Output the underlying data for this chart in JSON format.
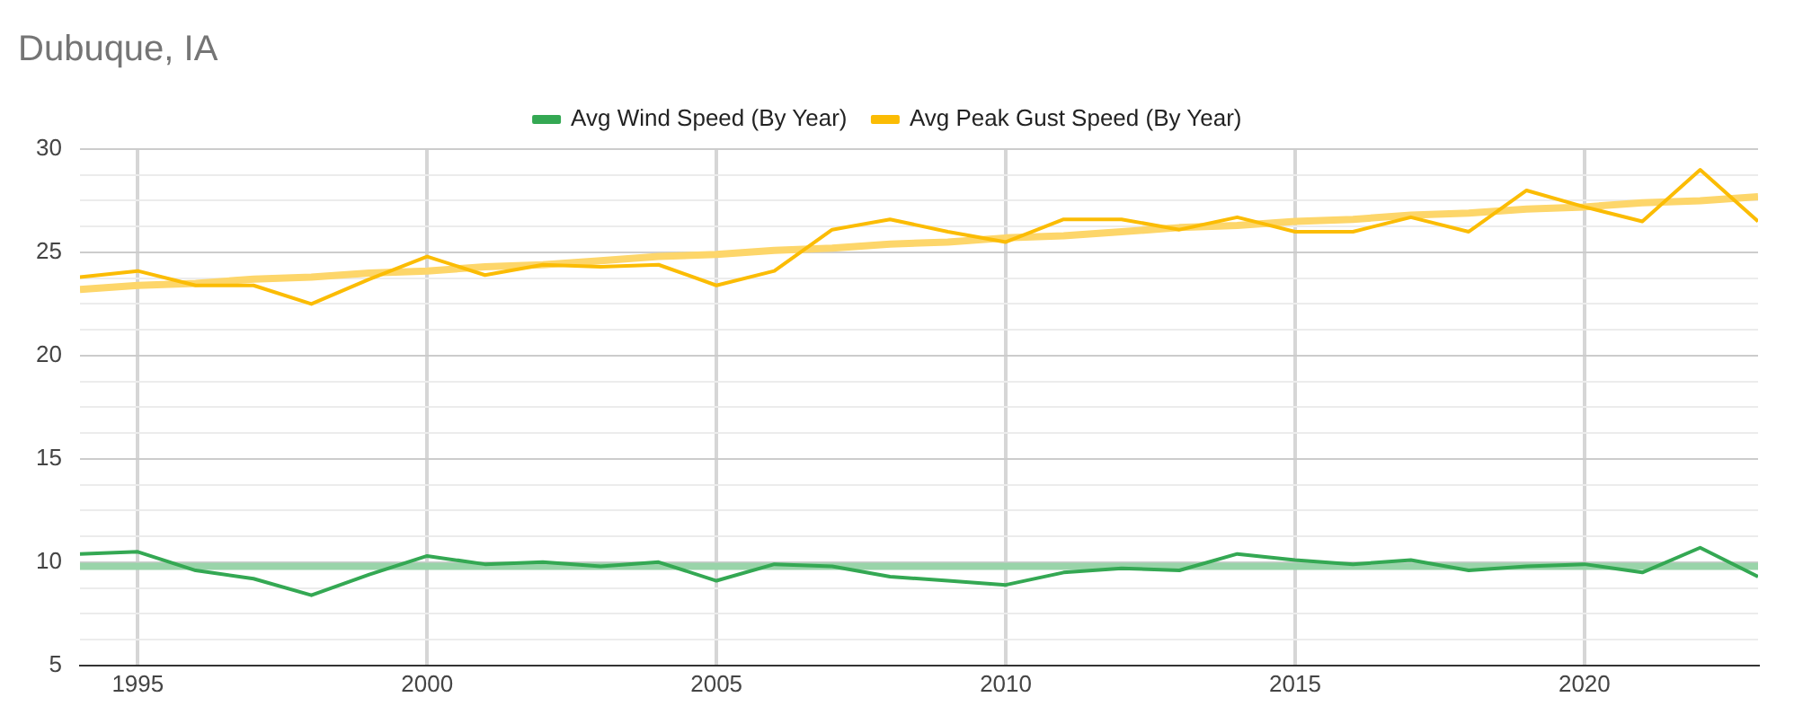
{
  "chart_data": {
    "type": "line",
    "title": "Dubuque, IA",
    "legend": "top",
    "grid": true,
    "marker": "none",
    "line_style": "solid",
    "x": [
      1994,
      1995,
      1996,
      1997,
      1998,
      1999,
      2000,
      2001,
      2002,
      2003,
      2004,
      2005,
      2006,
      2007,
      2008,
      2009,
      2010,
      2011,
      2012,
      2013,
      2014,
      2015,
      2016,
      2017,
      2018,
      2019,
      2020,
      2021,
      2022,
      2023
    ],
    "xlim": [
      1994,
      2023
    ],
    "xticks": [
      1995,
      2000,
      2005,
      2010,
      2015,
      2020
    ],
    "ylim": [
      5,
      30
    ],
    "yticks": [
      5,
      {
        "value": 6.25,
        "label": null
      },
      {
        "value": 7.5,
        "label": null
      },
      {
        "value": 8.75,
        "label": null
      },
      10,
      {
        "value": 11.25,
        "label": null
      },
      {
        "value": 12.5,
        "label": null
      },
      {
        "value": 13.75,
        "label": null
      },
      15,
      {
        "value": 16.25,
        "label": null
      },
      {
        "value": 17.5,
        "label": null
      },
      {
        "value": 18.75,
        "label": null
      },
      20,
      {
        "value": 21.25,
        "label": null
      },
      {
        "value": 22.5,
        "label": null
      },
      {
        "value": 23.75,
        "label": null
      },
      25,
      {
        "value": 26.25,
        "label": null
      },
      {
        "value": 27.5,
        "label": null
      },
      {
        "value": 28.75,
        "label": null
      },
      30
    ],
    "series": [
      {
        "name": "Avg Wind Speed (By Year)",
        "color": "#34a853",
        "values": [
          10.4,
          10.5,
          9.6,
          9.2,
          8.4,
          9.4,
          10.3,
          9.9,
          10.0,
          9.8,
          10.0,
          9.1,
          9.9,
          9.8,
          9.3,
          9.1,
          8.9,
          9.5,
          9.7,
          9.6,
          10.4,
          10.1,
          9.9,
          10.1,
          9.6,
          9.8,
          9.9,
          9.5,
          10.7,
          9.3
        ]
      },
      {
        "name": "Avg Peak Gust Speed (By Year)",
        "color": "#fbbc04",
        "values": [
          23.8,
          24.1,
          23.4,
          23.4,
          22.5,
          23.7,
          24.8,
          23.9,
          24.4,
          24.3,
          24.4,
          23.4,
          24.1,
          26.1,
          26.6,
          26.0,
          25.5,
          26.6,
          26.6,
          26.1,
          26.7,
          26.0,
          26.0,
          26.7,
          26.0,
          28.0,
          27.2,
          26.5,
          29.0,
          26.5
        ]
      },
      {
        "type": "line",
        "color": "#99d4a9",
        "values": [
          9.8,
          9.8,
          9.8,
          9.8,
          9.8,
          9.8,
          9.8,
          9.8,
          9.8,
          9.8,
          9.8,
          9.8,
          9.8,
          9.8,
          9.8,
          9.8,
          9.8,
          9.8,
          9.8,
          9.8,
          9.8,
          9.8,
          9.8,
          9.8,
          9.8,
          9.8,
          9.8,
          9.8,
          9.8,
          9.8
        ]
      },
      {
        "type": "line",
        "color": "#fdd66a",
        "values": [
          23.2,
          23.4,
          23.5,
          23.7,
          23.8,
          24.0,
          24.1,
          24.3,
          24.4,
          24.6,
          24.8,
          24.9,
          25.1,
          25.2,
          25.4,
          25.5,
          25.7,
          25.8,
          26.0,
          26.2,
          26.3,
          26.5,
          26.6,
          26.8,
          26.9,
          27.1,
          27.2,
          27.4,
          27.5,
          27.7
        ]
      }
    ]
  }
}
